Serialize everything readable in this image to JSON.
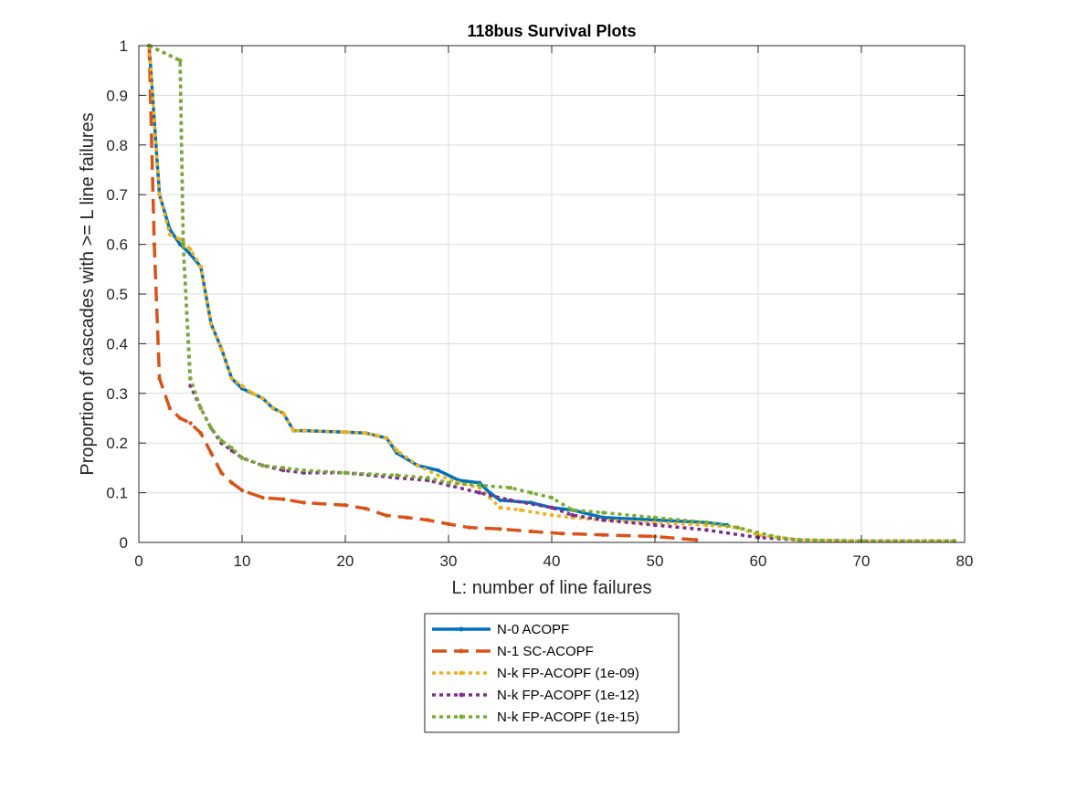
{
  "chart_data": {
    "type": "line",
    "title": "118bus Survival Plots",
    "xlabel": "L: number of line failures",
    "ylabel": "Proportion of cascades with >= L line failures",
    "xlim": [
      0,
      80
    ],
    "ylim": [
      0,
      1
    ],
    "xticks": [
      "0",
      "10",
      "20",
      "30",
      "40",
      "50",
      "60",
      "70",
      "80"
    ],
    "yticks": [
      "0",
      "0.1",
      "0.2",
      "0.3",
      "0.4",
      "0.5",
      "0.6",
      "0.7",
      "0.8",
      "0.9",
      "1"
    ],
    "grid": true,
    "legend_position": "bottom-outside",
    "series": [
      {
        "name": "N-0 ACOPF",
        "color": "#0072BD",
        "style": "solid",
        "x": [
          1,
          1.5,
          2,
          3,
          4,
          5,
          6,
          7,
          8,
          9,
          10,
          11,
          12,
          13,
          14,
          15,
          16,
          20,
          22,
          23,
          24,
          25,
          27,
          29,
          31,
          33,
          34,
          35,
          38,
          40,
          42,
          45,
          50,
          55,
          57
        ],
        "y": [
          1,
          0.85,
          0.7,
          0.63,
          0.6,
          0.58,
          0.555,
          0.44,
          0.39,
          0.33,
          0.31,
          0.3,
          0.29,
          0.27,
          0.26,
          0.225,
          0.225,
          0.222,
          0.22,
          0.215,
          0.21,
          0.18,
          0.155,
          0.145,
          0.125,
          0.12,
          0.1,
          0.085,
          0.08,
          0.07,
          0.065,
          0.05,
          0.045,
          0.04,
          0.035
        ]
      },
      {
        "name": "N-1 SC-ACOPF",
        "color": "#D95319",
        "style": "dashed",
        "x": [
          1,
          1.5,
          2,
          3,
          4,
          5,
          6,
          7,
          8,
          9,
          10,
          12,
          14,
          16,
          20,
          22,
          24,
          26,
          28,
          30,
          32,
          35,
          38,
          41,
          45,
          50,
          54
        ],
        "y": [
          1,
          0.6,
          0.33,
          0.27,
          0.25,
          0.24,
          0.22,
          0.18,
          0.14,
          0.12,
          0.105,
          0.09,
          0.087,
          0.08,
          0.075,
          0.068,
          0.054,
          0.05,
          0.045,
          0.037,
          0.03,
          0.027,
          0.022,
          0.018,
          0.015,
          0.012,
          0.005
        ]
      },
      {
        "name": "N-k FP-ACOPF (1e-09)",
        "color": "#EDB120",
        "style": "dotted",
        "x": [
          1,
          1.5,
          2,
          3,
          4,
          5,
          6,
          7,
          8,
          9,
          10,
          11,
          12,
          13,
          14,
          15,
          16,
          20,
          22,
          23,
          24,
          25,
          27,
          29,
          31,
          33,
          34,
          35,
          37,
          40,
          42,
          45,
          50,
          55,
          58,
          60,
          64,
          70,
          79
        ],
        "y": [
          1,
          0.85,
          0.7,
          0.62,
          0.61,
          0.59,
          0.555,
          0.44,
          0.39,
          0.33,
          0.315,
          0.3,
          0.29,
          0.27,
          0.26,
          0.225,
          0.225,
          0.222,
          0.22,
          0.215,
          0.21,
          0.185,
          0.155,
          0.135,
          0.12,
          0.11,
          0.09,
          0.07,
          0.065,
          0.055,
          0.05,
          0.045,
          0.04,
          0.035,
          0.03,
          0.015,
          0.005,
          0.003,
          0.003
        ]
      },
      {
        "name": "N-k FP-ACOPF (1e-12)",
        "color": "#7E2F8E",
        "style": "dotted",
        "x": [
          1,
          4,
          4.3,
          5,
          6,
          7,
          8,
          9,
          10,
          12,
          14,
          16,
          20,
          25,
          28,
          30,
          33,
          36,
          40,
          42,
          45,
          50,
          55,
          60,
          64,
          70,
          79
        ],
        "y": [
          1,
          0.97,
          0.6,
          0.315,
          0.27,
          0.23,
          0.2,
          0.185,
          0.17,
          0.155,
          0.145,
          0.14,
          0.14,
          0.13,
          0.125,
          0.115,
          0.1,
          0.085,
          0.07,
          0.055,
          0.045,
          0.035,
          0.025,
          0.01,
          0.005,
          0.003,
          0.003
        ]
      },
      {
        "name": "N-k FP-ACOPF (1e-15)",
        "color": "#77AC30",
        "style": "dotted",
        "x": [
          1,
          4,
          4.3,
          5,
          6,
          7,
          8,
          9,
          10,
          12,
          14,
          16,
          20,
          25,
          28,
          30,
          33,
          36,
          38,
          40,
          42,
          45,
          50,
          55,
          58,
          62,
          64,
          70,
          79
        ],
        "y": [
          1,
          0.97,
          0.6,
          0.33,
          0.27,
          0.23,
          0.205,
          0.19,
          0.17,
          0.155,
          0.15,
          0.145,
          0.14,
          0.135,
          0.13,
          0.12,
          0.115,
          0.11,
          0.1,
          0.09,
          0.065,
          0.06,
          0.05,
          0.04,
          0.03,
          0.01,
          0.005,
          0.003,
          0.003
        ]
      }
    ]
  }
}
